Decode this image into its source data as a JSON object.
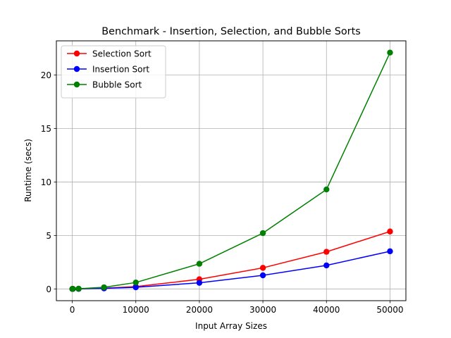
{
  "chart_data": {
    "type": "line",
    "title": "Benchmark - Insertion, Selection, and Bubble Sorts",
    "xlabel": "Input Array Sizes",
    "ylabel": "Runtime (secs)",
    "x": [
      10,
      100,
      1000,
      5000,
      10000,
      20000,
      30000,
      40000,
      50000
    ],
    "xlim": [
      -2500,
      52500
    ],
    "ylim": [
      -1.1,
      23.2
    ],
    "xticks": [
      0,
      10000,
      20000,
      30000,
      40000,
      50000
    ],
    "xtick_labels": [
      "0",
      "10000",
      "20000",
      "30000",
      "40000",
      "50000"
    ],
    "yticks": [
      0,
      5,
      10,
      15,
      20
    ],
    "ytick_labels": [
      "0",
      "5",
      "10",
      "15",
      "20"
    ],
    "grid": true,
    "legend_position": "top-left",
    "series": [
      {
        "name": "Selection Sort",
        "color": "#ff0000",
        "values": [
          0,
          0.001,
          0.01,
          0.07,
          0.22,
          0.9,
          1.97,
          3.47,
          5.37
        ]
      },
      {
        "name": "Insertion Sort",
        "color": "#0000ff",
        "values": [
          0,
          0.0005,
          0.005,
          0.05,
          0.15,
          0.57,
          1.27,
          2.2,
          3.52
        ]
      },
      {
        "name": "Bubble Sort",
        "color": "#008000",
        "values": [
          0,
          0.001,
          0.02,
          0.15,
          0.6,
          2.35,
          5.22,
          9.3,
          22.1
        ]
      }
    ]
  }
}
